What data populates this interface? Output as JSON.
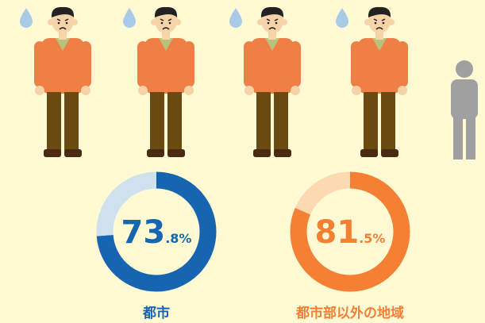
{
  "chart_data": [
    {
      "type": "donut",
      "category": "都市",
      "values": [
        73.8,
        26.2
      ],
      "value_label": "73.8%",
      "colors": [
        "#1565b0",
        "#cfe0ef"
      ]
    },
    {
      "type": "donut",
      "category": "都市部以外の地域",
      "values": [
        81.5,
        18.5
      ],
      "value_label": "81.5%",
      "colors": [
        "#f57f33",
        "#fcd9b0"
      ]
    }
  ]
}
